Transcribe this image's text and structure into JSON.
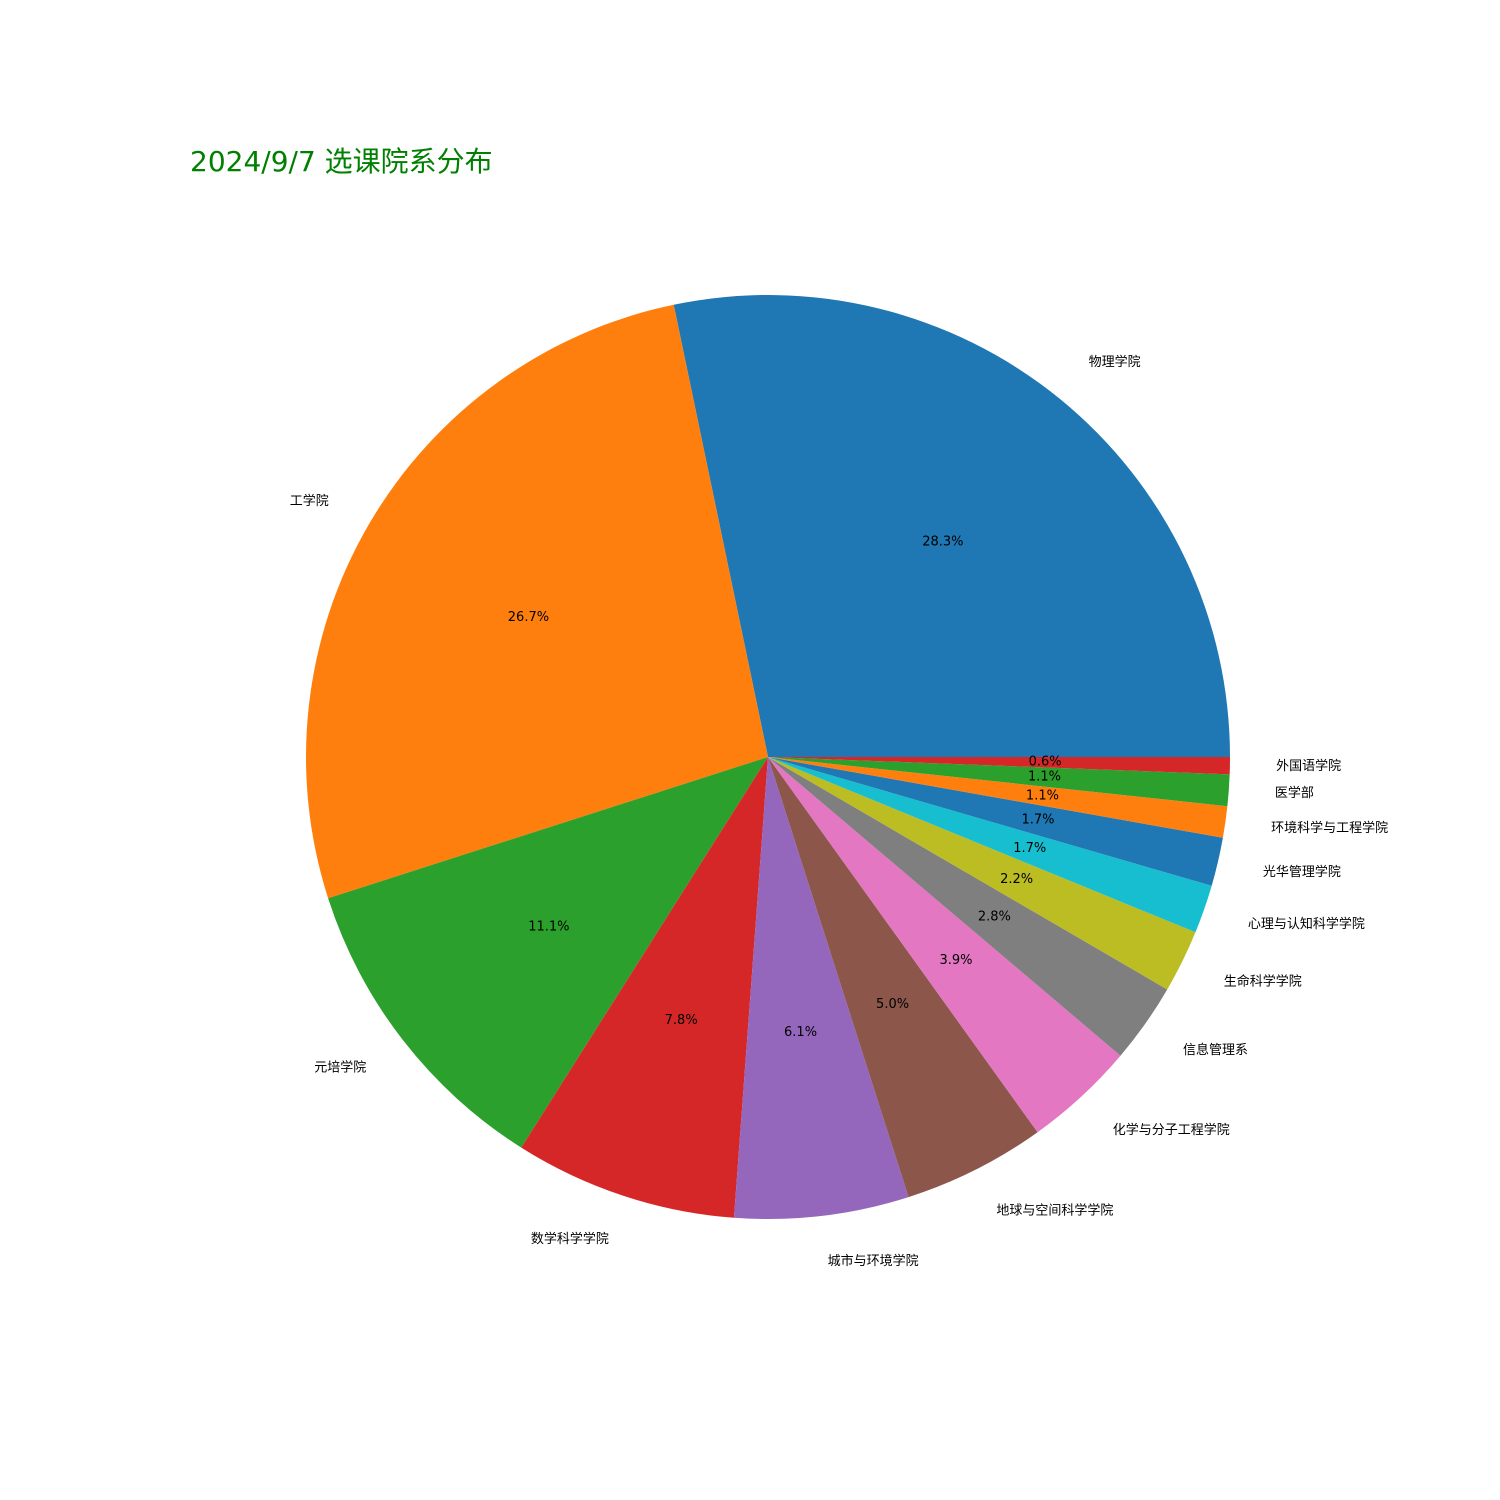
{
  "chart_data": {
    "type": "pie",
    "title": "2024/9/7 选课院系分布",
    "start_angle_deg": 0,
    "direction": "counterclockwise",
    "slices": [
      {
        "label": "物理学院",
        "pct_label": "28.3%",
        "value": 28.3,
        "color": "#1f77b4"
      },
      {
        "label": "工学院",
        "pct_label": "26.7%",
        "value": 26.7,
        "color": "#ff7f0e"
      },
      {
        "label": "元培学院",
        "pct_label": "11.1%",
        "value": 11.1,
        "color": "#2ca02c"
      },
      {
        "label": "数学科学学院",
        "pct_label": "7.8%",
        "value": 7.8,
        "color": "#d62728"
      },
      {
        "label": "城市与环境学院",
        "pct_label": "6.1%",
        "value": 6.1,
        "color": "#9467bd"
      },
      {
        "label": "地球与空间科学学院",
        "pct_label": "5.0%",
        "value": 5.0,
        "color": "#8c564b"
      },
      {
        "label": "化学与分子工程学院",
        "pct_label": "3.9%",
        "value": 3.9,
        "color": "#e377c2"
      },
      {
        "label": "信息管理系",
        "pct_label": "2.8%",
        "value": 2.8,
        "color": "#7f7f7f"
      },
      {
        "label": "生命科学学院",
        "pct_label": "2.2%",
        "value": 2.2,
        "color": "#bcbd22"
      },
      {
        "label": "心理与认知科学学院",
        "pct_label": "1.7%",
        "value": 1.7,
        "color": "#17becf"
      },
      {
        "label": "光华管理学院",
        "pct_label": "1.7%",
        "value": 1.7,
        "color": "#1f77b4"
      },
      {
        "label": "环境科学与工程学院",
        "pct_label": "1.1%",
        "value": 1.1,
        "color": "#ff7f0e"
      },
      {
        "label": "医学部",
        "pct_label": "1.1%",
        "value": 1.1,
        "color": "#2ca02c"
      },
      {
        "label": "外国语学院",
        "pct_label": "0.6%",
        "value": 0.6,
        "color": "#d62728"
      }
    ]
  }
}
